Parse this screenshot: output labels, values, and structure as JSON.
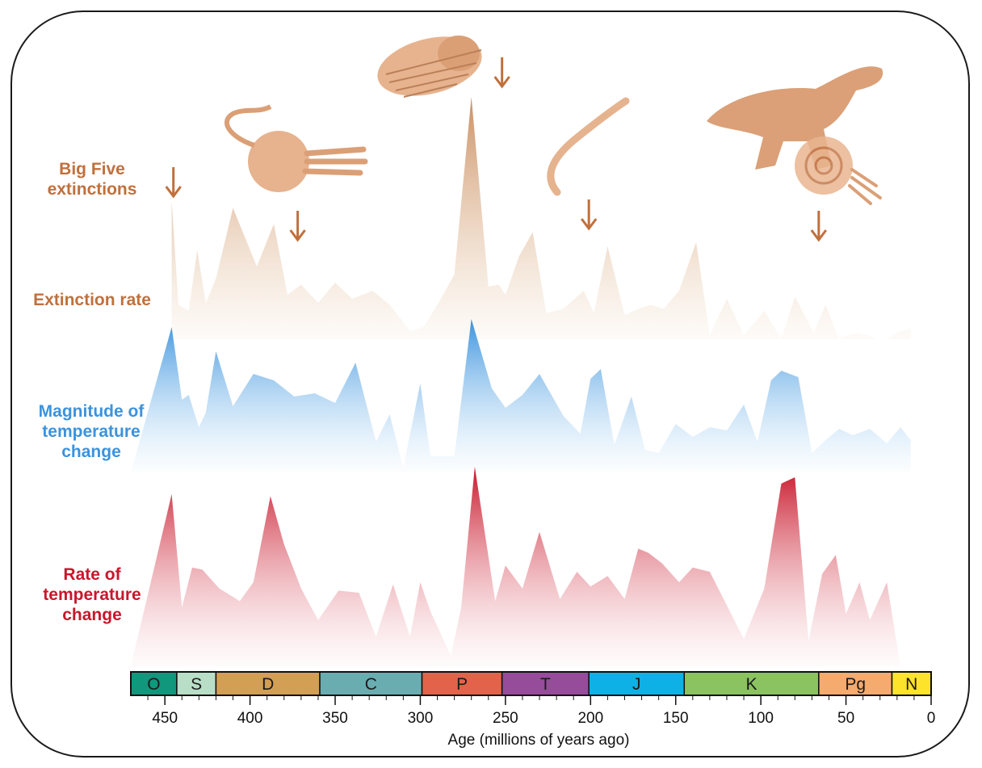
{
  "colors": {
    "extinction": "#c0703d",
    "magnitude": "#3b93dd",
    "rate": "#c8172b"
  },
  "labels": {
    "big_five_line1": "Big Five",
    "big_five_line2": "extinctions",
    "extinction_rate": "Extinction rate",
    "magnitude_line1": "Magnitude of",
    "magnitude_line2": "temperature",
    "magnitude_line3": "change",
    "rate_line1": "Rate of",
    "rate_line2": "temperature",
    "rate_line3": "change"
  },
  "chart_data": {
    "type": "area",
    "xlabel": "Age (millions of years ago)",
    "xlim": [
      470,
      0
    ],
    "x_ticks": [
      450,
      400,
      350,
      300,
      250,
      200,
      150,
      100,
      50,
      0
    ],
    "periods": [
      {
        "name": "O",
        "start": 470,
        "end": 443,
        "color": "#11977c"
      },
      {
        "name": "S",
        "start": 443,
        "end": 420,
        "color": "#b8dec7"
      },
      {
        "name": "D",
        "start": 420,
        "end": 359,
        "color": "#d29f54"
      },
      {
        "name": "C",
        "start": 359,
        "end": 299,
        "color": "#6aadb0"
      },
      {
        "name": "P",
        "start": 299,
        "end": 252,
        "color": "#e3634a"
      },
      {
        "name": "T",
        "start": 252,
        "end": 201,
        "color": "#964c9b"
      },
      {
        "name": "J",
        "start": 201,
        "end": 145,
        "color": "#0eb1e5"
      },
      {
        "name": "K",
        "start": 145,
        "end": 66,
        "color": "#8ac35f"
      },
      {
        "name": "Pg",
        "start": 66,
        "end": 23,
        "color": "#f5aa6e"
      },
      {
        "name": "N",
        "start": 23,
        "end": 0,
        "color": "#fde32a"
      }
    ],
    "big_five_extinctions": [
      445,
      372,
      252,
      201,
      66
    ],
    "series": [
      {
        "name": "Extinction rate",
        "ages": [
          446,
          442,
          436,
          431,
          426,
          420,
          410,
          396,
          386,
          378,
          370,
          360,
          350,
          340,
          328,
          318,
          306,
          298,
          290,
          280,
          270,
          260,
          254,
          250,
          242,
          234,
          226,
          216,
          204,
          198,
          190,
          180,
          172,
          165,
          157,
          148,
          138,
          130,
          120,
          110,
          98,
          88,
          80,
          75,
          69,
          62,
          54,
          49,
          44,
          38,
          32,
          26,
          18,
          12
        ],
        "values": [
          0.68,
          0.17,
          0.14,
          0.44,
          0.18,
          0.3,
          0.65,
          0.36,
          0.57,
          0.22,
          0.27,
          0.18,
          0.28,
          0.2,
          0.24,
          0.17,
          0.04,
          0.06,
          0.17,
          0.32,
          1.2,
          0.26,
          0.27,
          0.22,
          0.41,
          0.53,
          0.13,
          0.15,
          0.24,
          0.13,
          0.46,
          0.12,
          0.15,
          0.17,
          0.15,
          0.24,
          0.48,
          0.02,
          0.2,
          0.02,
          0.14,
          0.0,
          0.21,
          0.13,
          0.03,
          0.17,
          0.0,
          0.02,
          0.03,
          0.02,
          0.0,
          0.0,
          0.04,
          0.05
        ]
      },
      {
        "name": "Magnitude of temperature change",
        "ages": [
          470,
          446,
          440,
          436,
          430,
          426,
          420,
          410,
          398,
          386,
          374,
          362,
          350,
          338,
          326,
          318,
          310,
          300,
          294,
          288,
          280,
          270,
          258,
          250,
          240,
          230,
          216,
          206,
          200,
          194,
          186,
          176,
          168,
          160,
          150,
          140,
          130,
          120,
          110,
          102,
          94,
          88,
          78,
          70,
          62,
          54,
          46,
          36,
          26,
          18,
          12
        ],
        "values": [
          0.0,
          0.9,
          0.45,
          0.48,
          0.28,
          0.37,
          0.75,
          0.41,
          0.61,
          0.57,
          0.47,
          0.49,
          0.43,
          0.68,
          0.19,
          0.36,
          0.03,
          0.55,
          0.1,
          0.1,
          0.1,
          0.95,
          0.52,
          0.4,
          0.48,
          0.61,
          0.35,
          0.24,
          0.58,
          0.64,
          0.17,
          0.47,
          0.14,
          0.12,
          0.3,
          0.22,
          0.28,
          0.26,
          0.42,
          0.19,
          0.57,
          0.63,
          0.59,
          0.12,
          0.2,
          0.27,
          0.23,
          0.27,
          0.18,
          0.28,
          0.2
        ],
        "note": "values normalized to peak height of each panel"
      },
      {
        "name": "Rate of temperature change",
        "ages": [
          470,
          446,
          440,
          434,
          428,
          418,
          406,
          398,
          388,
          380,
          370,
          360,
          348,
          336,
          326,
          316,
          306,
          300,
          294,
          282,
          276,
          268,
          256,
          250,
          240,
          230,
          218,
          208,
          200,
          190,
          180,
          172,
          166,
          158,
          148,
          140,
          130,
          120,
          110,
          98,
          88,
          80,
          72,
          64,
          56,
          50,
          42,
          36,
          26,
          18,
          12
        ],
        "values": [
          0.0,
          0.82,
          0.28,
          0.47,
          0.46,
          0.37,
          0.31,
          0.4,
          0.81,
          0.58,
          0.37,
          0.22,
          0.36,
          0.35,
          0.14,
          0.39,
          0.14,
          0.4,
          0.26,
          0.05,
          0.28,
          0.95,
          0.31,
          0.48,
          0.37,
          0.64,
          0.32,
          0.45,
          0.38,
          0.43,
          0.32,
          0.56,
          0.54,
          0.49,
          0.4,
          0.47,
          0.45,
          0.29,
          0.13,
          0.37,
          0.87,
          0.9,
          0.12,
          0.44,
          0.53,
          0.25,
          0.4,
          0.22,
          0.4,
          0.0,
          0.0
        ],
        "note": "values normalized to peak height of each panel"
      }
    ]
  }
}
